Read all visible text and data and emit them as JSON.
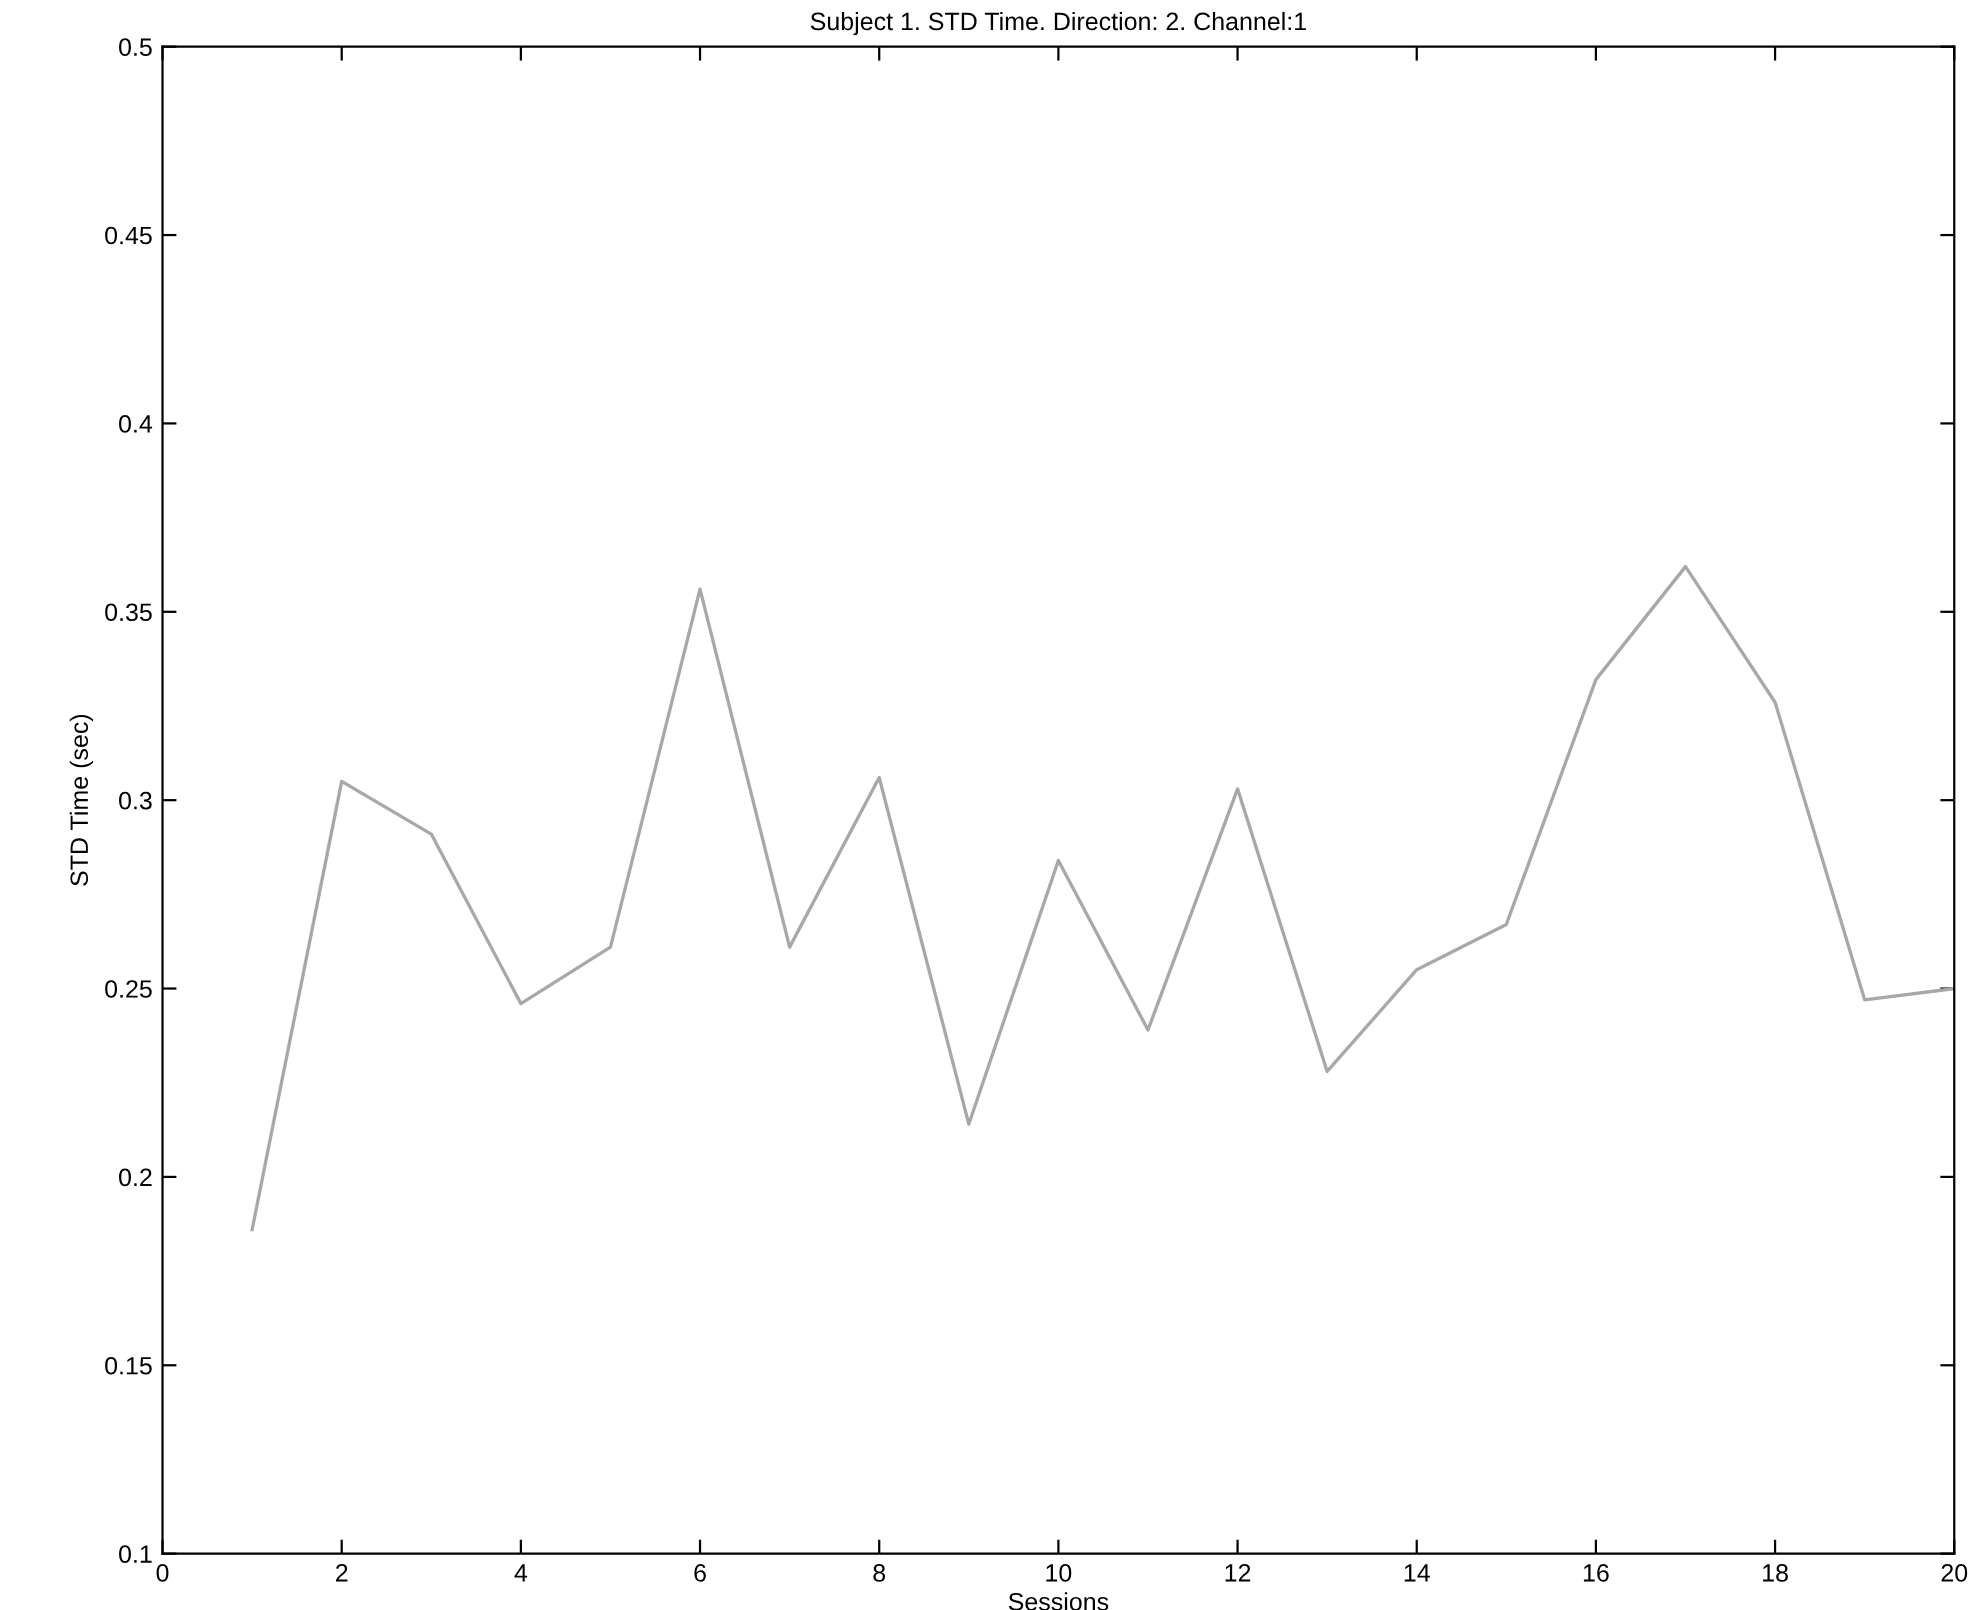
{
  "chart_data": {
    "type": "line",
    "title": "Subject 1. STD Time. Direction: 2. Channel:1",
    "xlabel": "Sessions",
    "ylabel": "STD Time (sec)",
    "x": [
      1,
      2,
      3,
      4,
      5,
      6,
      7,
      8,
      9,
      10,
      11,
      12,
      13,
      14,
      15,
      16,
      17,
      18,
      19,
      20
    ],
    "series": [
      {
        "color": "#a8a8a8",
        "values": [
          0.186,
          0.305,
          0.291,
          0.246,
          0.261,
          0.356,
          0.261,
          0.306,
          0.214,
          0.284,
          0.239,
          0.303,
          0.228,
          0.255,
          0.267,
          0.332,
          0.362,
          0.326,
          0.247,
          0.25
        ]
      }
    ],
    "xlim": [
      0,
      20
    ],
    "xticks": [
      0,
      2,
      4,
      6,
      8,
      10,
      12,
      14,
      16,
      18,
      20
    ],
    "ylim": [
      0.1,
      0.5
    ],
    "yticks": [
      0.1,
      0.15,
      0.2,
      0.25,
      0.3,
      0.35,
      0.4,
      0.45,
      0.5
    ],
    "grid": false,
    "legend": false,
    "marker": "none",
    "line_style": "solid"
  }
}
